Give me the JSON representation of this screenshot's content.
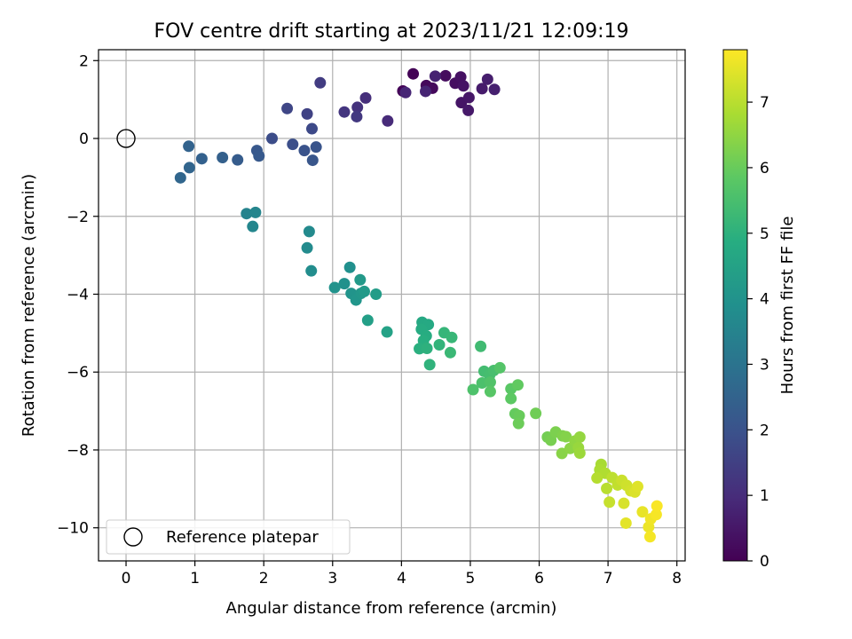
{
  "chart_data": {
    "type": "scatter",
    "title": "FOV centre drift starting at 2023/11/21 12:09:19",
    "xlabel": "Angular distance from reference (arcmin)",
    "ylabel": "Rotation from reference (arcmin)",
    "xlim": [
      -0.4,
      8.12
    ],
    "ylim": [
      -10.85,
      2.28
    ],
    "xticks": [
      0,
      1,
      2,
      3,
      4,
      5,
      6,
      7,
      8
    ],
    "yticks": [
      2,
      0,
      -2,
      -4,
      -6,
      -8,
      -10
    ],
    "xtick_labels": [
      "0",
      "1",
      "2",
      "3",
      "4",
      "5",
      "6",
      "7",
      "8"
    ],
    "ytick_labels": [
      "2",
      "0",
      "−2",
      "−4",
      "−6",
      "−8",
      "−10"
    ],
    "grid": true,
    "colormap": "viridis",
    "colorbar": {
      "label": "Hours from first FF file",
      "range": [
        0,
        7.8
      ],
      "ticks": [
        0,
        1,
        2,
        3,
        4,
        5,
        6,
        7
      ],
      "tick_labels": [
        "0",
        "1",
        "2",
        "3",
        "4",
        "5",
        "6",
        "7"
      ]
    },
    "legend": {
      "placement": "lower-left",
      "entries": [
        "Reference platepar"
      ]
    },
    "reference_point": {
      "x": 0,
      "y": 0,
      "marker": "hollow-circle"
    },
    "points": [
      {
        "x": 4.17,
        "y": 1.66,
        "t": 0.05
      },
      {
        "x": 4.02,
        "y": 1.22,
        "t": 0.1
      },
      {
        "x": 4.36,
        "y": 1.36,
        "t": 0.15
      },
      {
        "x": 4.45,
        "y": 1.29,
        "t": 0.2
      },
      {
        "x": 4.64,
        "y": 1.61,
        "t": 0.25
      },
      {
        "x": 4.78,
        "y": 1.42,
        "t": 0.3
      },
      {
        "x": 4.86,
        "y": 1.58,
        "t": 0.35
      },
      {
        "x": 4.9,
        "y": 1.35,
        "t": 0.4
      },
      {
        "x": 4.87,
        "y": 0.92,
        "t": 0.45
      },
      {
        "x": 4.98,
        "y": 1.05,
        "t": 0.5
      },
      {
        "x": 4.97,
        "y": 0.72,
        "t": 0.55
      },
      {
        "x": 5.17,
        "y": 1.28,
        "t": 0.6
      },
      {
        "x": 5.25,
        "y": 1.52,
        "t": 0.65
      },
      {
        "x": 5.35,
        "y": 1.26,
        "t": 0.7
      },
      {
        "x": 4.49,
        "y": 1.6,
        "t": 0.75
      },
      {
        "x": 4.35,
        "y": 1.21,
        "t": 0.8
      },
      {
        "x": 4.06,
        "y": 1.18,
        "t": 0.85
      },
      {
        "x": 3.8,
        "y": 0.45,
        "t": 0.95
      },
      {
        "x": 3.48,
        "y": 1.04,
        "t": 1.05
      },
      {
        "x": 3.36,
        "y": 0.8,
        "t": 1.15
      },
      {
        "x": 3.17,
        "y": 0.68,
        "t": 1.25
      },
      {
        "x": 3.35,
        "y": 0.56,
        "t": 1.3
      },
      {
        "x": 2.82,
        "y": 1.43,
        "t": 1.4
      },
      {
        "x": 2.63,
        "y": 0.63,
        "t": 1.55
      },
      {
        "x": 2.34,
        "y": 0.77,
        "t": 1.65
      },
      {
        "x": 2.7,
        "y": 0.25,
        "t": 1.75
      },
      {
        "x": 2.12,
        "y": 0.0,
        "t": 1.85
      },
      {
        "x": 2.42,
        "y": -0.15,
        "t": 1.9
      },
      {
        "x": 2.59,
        "y": -0.31,
        "t": 2.0
      },
      {
        "x": 2.76,
        "y": -0.22,
        "t": 2.05
      },
      {
        "x": 2.71,
        "y": -0.56,
        "t": 2.1
      },
      {
        "x": 1.9,
        "y": -0.31,
        "t": 2.15
      },
      {
        "x": 1.93,
        "y": -0.45,
        "t": 2.2
      },
      {
        "x": 1.62,
        "y": -0.55,
        "t": 2.3
      },
      {
        "x": 1.4,
        "y": -0.49,
        "t": 2.4
      },
      {
        "x": 1.1,
        "y": -0.52,
        "t": 2.45
      },
      {
        "x": 0.91,
        "y": -0.2,
        "t": 2.5
      },
      {
        "x": 0.92,
        "y": -0.75,
        "t": 2.55
      },
      {
        "x": 0.79,
        "y": -1.01,
        "t": 2.6
      },
      {
        "x": 1.75,
        "y": -1.93,
        "t": 3.5
      },
      {
        "x": 1.88,
        "y": -1.9,
        "t": 3.55
      },
      {
        "x": 1.84,
        "y": -2.26,
        "t": 3.6
      },
      {
        "x": 2.66,
        "y": -2.39,
        "t": 3.7
      },
      {
        "x": 2.63,
        "y": -2.81,
        "t": 3.75
      },
      {
        "x": 2.69,
        "y": -3.4,
        "t": 3.8
      },
      {
        "x": 3.25,
        "y": -3.31,
        "t": 3.9
      },
      {
        "x": 3.17,
        "y": -3.73,
        "t": 3.95
      },
      {
        "x": 3.03,
        "y": -3.83,
        "t": 4.0
      },
      {
        "x": 3.27,
        "y": -3.98,
        "t": 4.05
      },
      {
        "x": 3.34,
        "y": -4.15,
        "t": 4.1
      },
      {
        "x": 3.41,
        "y": -3.98,
        "t": 4.15
      },
      {
        "x": 3.4,
        "y": -3.63,
        "t": 4.2
      },
      {
        "x": 3.46,
        "y": -3.93,
        "t": 4.25
      },
      {
        "x": 3.63,
        "y": -4.0,
        "t": 4.3
      },
      {
        "x": 3.51,
        "y": -4.67,
        "t": 4.4
      },
      {
        "x": 3.79,
        "y": -4.97,
        "t": 4.5
      },
      {
        "x": 4.3,
        "y": -4.72,
        "t": 4.7
      },
      {
        "x": 4.39,
        "y": -4.78,
        "t": 4.75
      },
      {
        "x": 4.29,
        "y": -4.9,
        "t": 4.8
      },
      {
        "x": 4.36,
        "y": -5.07,
        "t": 4.85
      },
      {
        "x": 4.32,
        "y": -5.19,
        "t": 4.9
      },
      {
        "x": 4.26,
        "y": -5.4,
        "t": 4.95
      },
      {
        "x": 4.37,
        "y": -5.39,
        "t": 5.0
      },
      {
        "x": 4.41,
        "y": -5.81,
        "t": 5.05
      },
      {
        "x": 4.55,
        "y": -5.3,
        "t": 5.1
      },
      {
        "x": 4.62,
        "y": -4.99,
        "t": 5.15
      },
      {
        "x": 4.73,
        "y": -5.11,
        "t": 5.2
      },
      {
        "x": 4.71,
        "y": -5.5,
        "t": 5.25
      },
      {
        "x": 5.15,
        "y": -5.34,
        "t": 5.35
      },
      {
        "x": 5.2,
        "y": -5.98,
        "t": 5.4
      },
      {
        "x": 5.28,
        "y": -6.08,
        "t": 5.45
      },
      {
        "x": 5.34,
        "y": -5.96,
        "t": 5.5
      },
      {
        "x": 5.17,
        "y": -6.28,
        "t": 5.55
      },
      {
        "x": 5.04,
        "y": -6.45,
        "t": 5.6
      },
      {
        "x": 5.29,
        "y": -6.26,
        "t": 5.65
      },
      {
        "x": 5.43,
        "y": -5.89,
        "t": 5.7
      },
      {
        "x": 5.29,
        "y": -6.5,
        "t": 5.75
      },
      {
        "x": 5.59,
        "y": -6.43,
        "t": 5.8
      },
      {
        "x": 5.59,
        "y": -6.68,
        "t": 5.85
      },
      {
        "x": 5.69,
        "y": -6.33,
        "t": 5.9
      },
      {
        "x": 5.65,
        "y": -7.07,
        "t": 5.95
      },
      {
        "x": 5.71,
        "y": -7.12,
        "t": 6.0
      },
      {
        "x": 5.7,
        "y": -7.32,
        "t": 6.05
      },
      {
        "x": 5.95,
        "y": -7.06,
        "t": 6.1
      },
      {
        "x": 6.12,
        "y": -7.67,
        "t": 6.15
      },
      {
        "x": 6.17,
        "y": -7.75,
        "t": 6.2
      },
      {
        "x": 6.24,
        "y": -7.54,
        "t": 6.25
      },
      {
        "x": 6.34,
        "y": -7.64,
        "t": 6.3
      },
      {
        "x": 6.39,
        "y": -7.66,
        "t": 6.35
      },
      {
        "x": 6.33,
        "y": -8.09,
        "t": 6.4
      },
      {
        "x": 6.45,
        "y": -7.96,
        "t": 6.45
      },
      {
        "x": 6.52,
        "y": -7.77,
        "t": 6.5
      },
      {
        "x": 6.59,
        "y": -7.67,
        "t": 6.55
      },
      {
        "x": 6.57,
        "y": -7.94,
        "t": 6.6
      },
      {
        "x": 6.59,
        "y": -8.08,
        "t": 6.65
      },
      {
        "x": 6.9,
        "y": -8.37,
        "t": 6.8
      },
      {
        "x": 6.88,
        "y": -8.51,
        "t": 6.85
      },
      {
        "x": 6.96,
        "y": -8.6,
        "t": 6.9
      },
      {
        "x": 6.84,
        "y": -8.72,
        "t": 6.95
      },
      {
        "x": 6.98,
        "y": -8.99,
        "t": 7.0
      },
      {
        "x": 7.06,
        "y": -8.71,
        "t": 7.05
      },
      {
        "x": 7.14,
        "y": -8.9,
        "t": 7.1
      },
      {
        "x": 7.02,
        "y": -9.34,
        "t": 7.15
      },
      {
        "x": 7.2,
        "y": -8.78,
        "t": 7.2
      },
      {
        "x": 7.27,
        "y": -8.91,
        "t": 7.25
      },
      {
        "x": 7.33,
        "y": -9.05,
        "t": 7.3
      },
      {
        "x": 7.23,
        "y": -9.37,
        "t": 7.35
      },
      {
        "x": 7.39,
        "y": -9.08,
        "t": 7.4
      },
      {
        "x": 7.43,
        "y": -8.94,
        "t": 7.45
      },
      {
        "x": 7.26,
        "y": -9.88,
        "t": 7.5
      },
      {
        "x": 7.5,
        "y": -9.59,
        "t": 7.55
      },
      {
        "x": 7.59,
        "y": -9.98,
        "t": 7.6
      },
      {
        "x": 7.62,
        "y": -9.77,
        "t": 7.65
      },
      {
        "x": 7.61,
        "y": -10.23,
        "t": 7.7
      },
      {
        "x": 7.7,
        "y": -9.66,
        "t": 7.72
      },
      {
        "x": 7.71,
        "y": -9.44,
        "t": 7.75
      }
    ]
  }
}
